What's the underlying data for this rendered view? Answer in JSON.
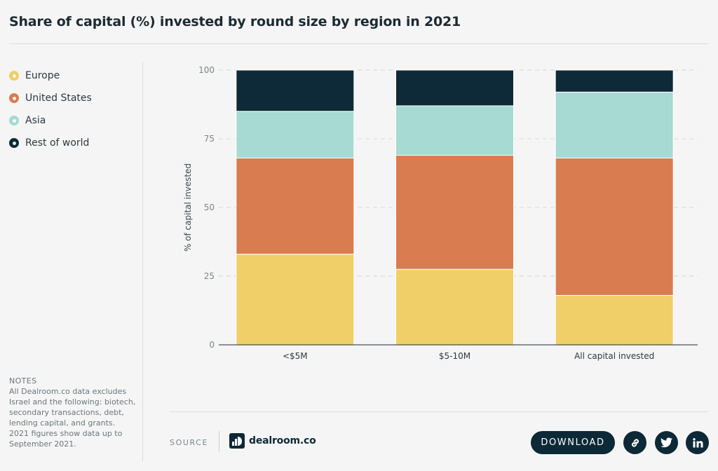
{
  "header": {
    "title": "Share of capital (%) invested by round size by region in 2021"
  },
  "legend": {
    "items": [
      {
        "label": "Europe",
        "color": "#f0cf68"
      },
      {
        "label": "United States",
        "color": "#d97d50"
      },
      {
        "label": "Asia",
        "color": "#a6dad2"
      },
      {
        "label": "Rest of world",
        "color": "#0e2a38"
      }
    ]
  },
  "notes": {
    "heading": "NOTES",
    "text": "All Dealroom.co data excludes Israel and the following: biotech, secondary transactions, debt, lending capital, and grants. 2021 figures show data up to September 2021."
  },
  "footer": {
    "source_label": "SOURCE",
    "logo_text": "dealroom.co",
    "download_label": "DOWNLOAD",
    "icons": [
      "link-icon",
      "twitter-icon",
      "linkedin-icon"
    ]
  },
  "chart_data": {
    "type": "bar",
    "stacked": true,
    "title": "Share of capital (%) invested by round size by region in 2021",
    "xlabel": "",
    "ylabel": "% of capital invested",
    "ylim": [
      0,
      100
    ],
    "yticks": [
      0,
      25,
      50,
      75,
      100
    ],
    "grid": true,
    "legend_position": "left",
    "categories": [
      "<$5M",
      "$5-10M",
      "All capital invested"
    ],
    "series": [
      {
        "name": "Europe",
        "color": "#f0cf68",
        "values": [
          33,
          27.5,
          18
        ]
      },
      {
        "name": "United States",
        "color": "#d97d50",
        "values": [
          35,
          41.5,
          50
        ]
      },
      {
        "name": "Asia",
        "color": "#a6dad2",
        "values": [
          17,
          18,
          24
        ]
      },
      {
        "name": "Rest of world",
        "color": "#0e2a38",
        "values": [
          15,
          13,
          8
        ]
      }
    ]
  }
}
